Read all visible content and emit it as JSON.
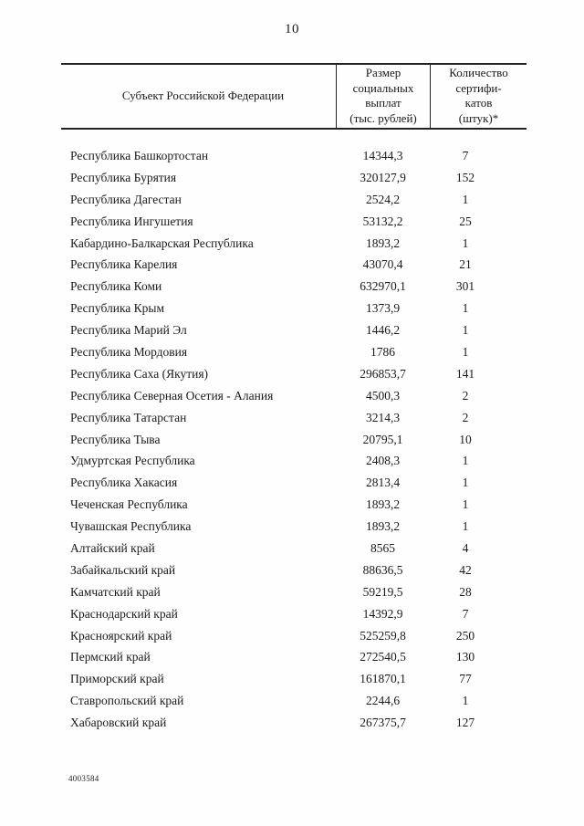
{
  "page": {
    "number": "10",
    "footer_code": "4003584"
  },
  "table": {
    "headers": [
      "Субъект Российской Федерации",
      "Размер\nсоциальных\nвыплат\n(тыс. рублей)",
      "Количество\nсертифи-\nкатов\n(штук)*"
    ],
    "rows": [
      {
        "region": "Республика Башкортостан",
        "amount": "14344,3",
        "count": "7"
      },
      {
        "region": "Республика Бурятия",
        "amount": "320127,9",
        "count": "152"
      },
      {
        "region": "Республика Дагестан",
        "amount": "2524,2",
        "count": "1"
      },
      {
        "region": "Республика Ингушетия",
        "amount": "53132,2",
        "count": "25"
      },
      {
        "region": "Кабардино-Балкарская Республика",
        "amount": "1893,2",
        "count": "1"
      },
      {
        "region": "Республика Карелия",
        "amount": "43070,4",
        "count": "21"
      },
      {
        "region": "Республика Коми",
        "amount": "632970,1",
        "count": "301"
      },
      {
        "region": "Республика Крым",
        "amount": "1373,9",
        "count": "1"
      },
      {
        "region": "Республика Марий Эл",
        "amount": "1446,2",
        "count": "1"
      },
      {
        "region": "Республика Мордовия",
        "amount": "1786",
        "count": "1"
      },
      {
        "region": "Республика Саха (Якутия)",
        "amount": "296853,7",
        "count": "141"
      },
      {
        "region": "Республика Северная Осетия - Алания",
        "amount": "4500,3",
        "count": "2"
      },
      {
        "region": "Республика Татарстан",
        "amount": "3214,3",
        "count": "2"
      },
      {
        "region": "Республика Тыва",
        "amount": "20795,1",
        "count": "10"
      },
      {
        "region": "Удмуртская Республика",
        "amount": "2408,3",
        "count": "1"
      },
      {
        "region": "Республика Хакасия",
        "amount": "2813,4",
        "count": "1"
      },
      {
        "region": "Чеченская Республика",
        "amount": "1893,2",
        "count": "1"
      },
      {
        "region": "Чувашская Республика",
        "amount": "1893,2",
        "count": "1"
      },
      {
        "region": "Алтайский край",
        "amount": "8565",
        "count": "4"
      },
      {
        "region": "Забайкальский край",
        "amount": "88636,5",
        "count": "42"
      },
      {
        "region": "Камчатский край",
        "amount": "59219,5",
        "count": "28"
      },
      {
        "region": "Краснодарский край",
        "amount": "14392,9",
        "count": "7"
      },
      {
        "region": "Красноярский край",
        "amount": "525259,8",
        "count": "250"
      },
      {
        "region": "Пермский край",
        "amount": "272540,5",
        "count": "130"
      },
      {
        "region": "Приморский край",
        "amount": "161870,1",
        "count": "77"
      },
      {
        "region": "Ставропольский край",
        "amount": "2244,6",
        "count": "1"
      },
      {
        "region": "Хабаровский край",
        "amount": "267375,7",
        "count": "127"
      }
    ]
  }
}
